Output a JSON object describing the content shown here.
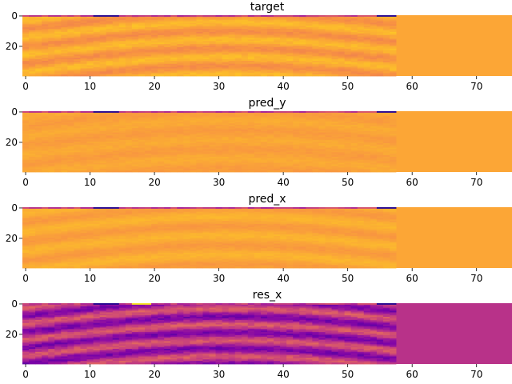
{
  "chart_data": [
    {
      "type": "heatmap",
      "title": "target",
      "colormap": "plasma",
      "xlim": [
        -0.5,
        75.5
      ],
      "ylim": [
        39.5,
        -0.5
      ],
      "x_ticks": [
        0,
        10,
        20,
        30,
        40,
        50,
        60,
        70
      ],
      "y_ticks": [
        0,
        20
      ],
      "x_tick_labels": [
        "0",
        "10",
        "20",
        "30",
        "40",
        "50",
        "60",
        "70"
      ],
      "y_tick_labels": [
        "0",
        "20"
      ],
      "data_columns": 58,
      "padding_color": "#fca636",
      "texture": "curved-bands"
    },
    {
      "type": "heatmap",
      "title": "pred_y",
      "colormap": "plasma",
      "xlim": [
        -0.5,
        75.5
      ],
      "ylim": [
        39.5,
        -0.5
      ],
      "x_ticks": [
        0,
        10,
        20,
        30,
        40,
        50,
        60,
        70
      ],
      "y_ticks": [
        0,
        20
      ],
      "x_tick_labels": [
        "0",
        "10",
        "20",
        "30",
        "40",
        "50",
        "60",
        "70"
      ],
      "y_tick_labels": [
        "0",
        "20"
      ],
      "data_columns": 58,
      "padding_color": "#fca636",
      "texture": "flat"
    },
    {
      "type": "heatmap",
      "title": "pred_x",
      "colormap": "plasma",
      "xlim": [
        -0.5,
        75.5
      ],
      "ylim": [
        39.5,
        -0.5
      ],
      "x_ticks": [
        0,
        10,
        20,
        30,
        40,
        50,
        60,
        70
      ],
      "y_ticks": [
        0,
        20
      ],
      "x_tick_labels": [
        "0",
        "10",
        "20",
        "30",
        "40",
        "50",
        "60",
        "70"
      ],
      "y_tick_labels": [
        "0",
        "20"
      ],
      "data_columns": 58,
      "padding_color": "#fca636",
      "texture": "faint-bands"
    },
    {
      "type": "heatmap",
      "title": "res_x",
      "colormap": "plasma",
      "xlim": [
        -0.5,
        75.5
      ],
      "ylim": [
        39.5,
        -0.5
      ],
      "x_ticks": [
        0,
        10,
        20,
        30,
        40,
        50,
        60,
        70
      ],
      "y_ticks": [
        0,
        20
      ],
      "x_tick_labels": [
        "0",
        "10",
        "20",
        "30",
        "40",
        "50",
        "60",
        "70"
      ],
      "y_tick_labels": [
        "0",
        "20"
      ],
      "data_columns": 58,
      "padding_color": "#b83289",
      "texture": "residual-bands"
    }
  ]
}
